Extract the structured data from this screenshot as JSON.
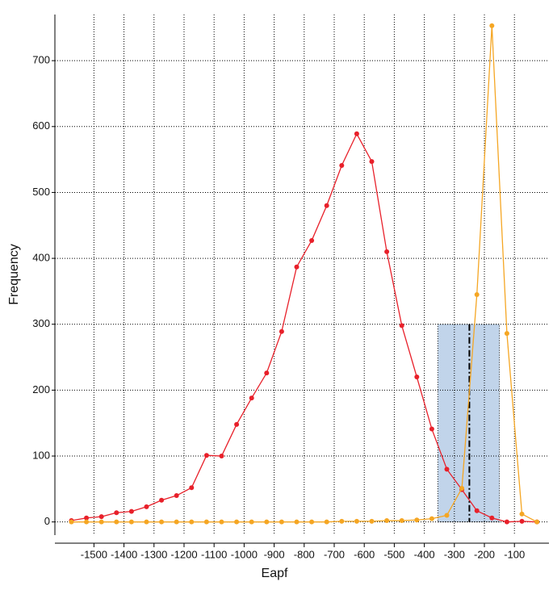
{
  "chart_data": {
    "type": "line",
    "x_label": "Eapf",
    "y_label": "Frequency",
    "x": [
      -1575,
      -1525,
      -1475,
      -1425,
      -1375,
      -1325,
      -1275,
      -1225,
      -1175,
      -1125,
      -1075,
      -1025,
      -975,
      -925,
      -875,
      -825,
      -775,
      -725,
      -675,
      -625,
      -575,
      -525,
      -475,
      -425,
      -375,
      -325,
      -275,
      -225,
      -175,
      -125,
      -75,
      -25
    ],
    "series": [
      {
        "name": "Red",
        "color": "#e8202a",
        "values": [
          2,
          6,
          8,
          14,
          16,
          23,
          33,
          40,
          52,
          101,
          100,
          148,
          188,
          226,
          289,
          387,
          427,
          480,
          541,
          589,
          547,
          410,
          298,
          220,
          141,
          80,
          49,
          17,
          6,
          0,
          1,
          0
        ]
      },
      {
        "name": "Orange",
        "color": "#f5a623",
        "values": [
          0,
          0,
          0,
          0,
          0,
          0,
          0,
          0,
          0,
          0,
          0,
          0,
          0,
          0,
          0,
          0,
          0,
          0,
          1,
          1,
          1,
          2,
          2,
          3,
          5,
          10,
          51,
          345,
          753,
          286,
          12,
          0
        ]
      }
    ],
    "xlim": [
      -1630,
      15
    ],
    "ylim": [
      -20,
      770
    ],
    "xticks": [
      -1500,
      -1400,
      -1300,
      -1200,
      -1100,
      -1000,
      -900,
      -800,
      -700,
      -600,
      -500,
      -400,
      -300,
      -200,
      -100
    ],
    "yticks": [
      0,
      100,
      200,
      300,
      400,
      500,
      600,
      700
    ],
    "grid": true,
    "shaded_region": {
      "x": [
        -355,
        -150
      ],
      "y": [
        0,
        300
      ],
      "color": "#b6cce6"
    },
    "threshold": -250
  }
}
